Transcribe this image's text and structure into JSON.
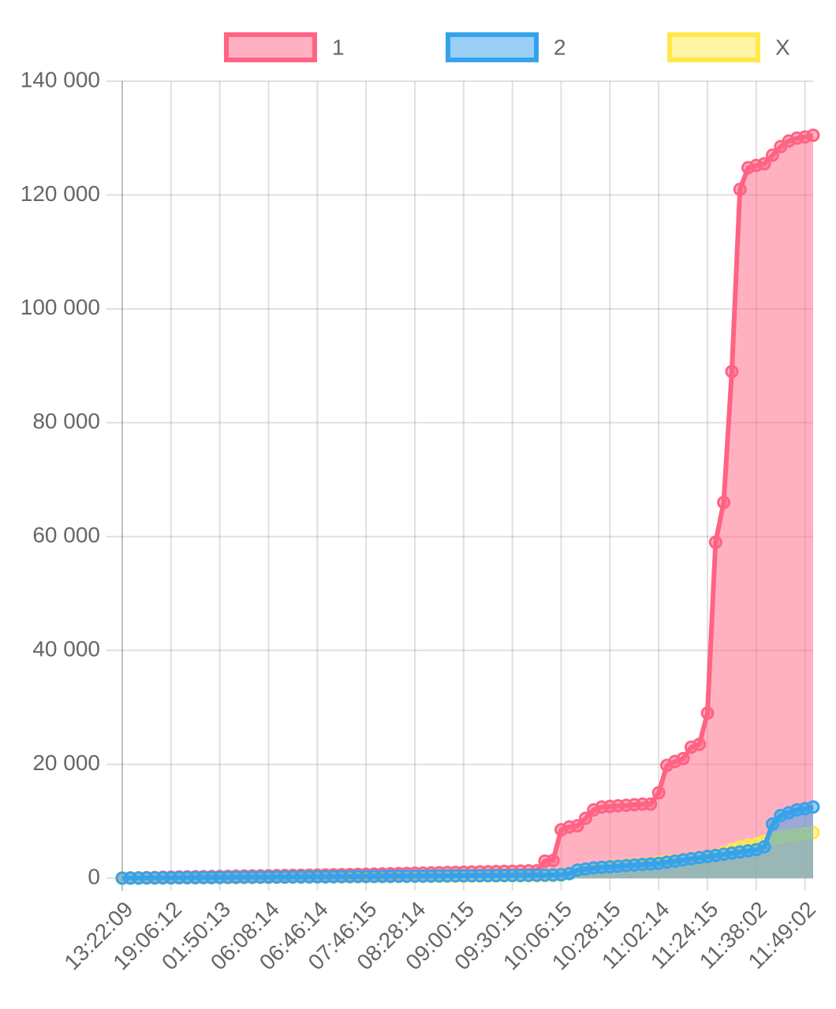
{
  "chart_data": {
    "type": "line",
    "categories": [
      "13:22:09",
      null,
      null,
      null,
      null,
      null,
      "19:06:12",
      null,
      null,
      null,
      null,
      null,
      "01:50:13",
      null,
      null,
      null,
      null,
      null,
      "06:08:14",
      null,
      null,
      null,
      null,
      null,
      "06:46:14",
      null,
      null,
      null,
      null,
      null,
      "07:46:15",
      null,
      null,
      null,
      null,
      null,
      "08:28:14",
      null,
      null,
      null,
      null,
      null,
      "09:00:15",
      null,
      null,
      null,
      null,
      null,
      "09:30:15",
      null,
      null,
      null,
      null,
      null,
      "10:06:15",
      null,
      null,
      null,
      null,
      null,
      "10:28:15",
      null,
      null,
      null,
      null,
      null,
      "11:02:14",
      null,
      null,
      null,
      null,
      null,
      "11:24:15",
      null,
      null,
      null,
      null,
      null,
      "11:38:02",
      null,
      null,
      null,
      null,
      null,
      "11:49:02",
      null
    ],
    "series": [
      {
        "name": "1",
        "color": "#ff6384",
        "values": [
          0,
          30,
          60,
          90,
          120,
          150,
          180,
          200,
          220,
          240,
          260,
          280,
          300,
          320,
          340,
          360,
          380,
          400,
          420,
          440,
          460,
          480,
          500,
          520,
          540,
          560,
          580,
          600,
          620,
          650,
          680,
          710,
          740,
          770,
          800,
          830,
          860,
          890,
          920,
          950,
          980,
          1010,
          1040,
          1070,
          1100,
          1130,
          1160,
          1190,
          1220,
          1250,
          1280,
          1300,
          3000,
          3100,
          8500,
          9000,
          9200,
          10500,
          12000,
          12500,
          12600,
          12700,
          12800,
          12900,
          13000,
          13000,
          15000,
          19800,
          20500,
          21000,
          23000,
          23500,
          29000,
          59000,
          66000,
          89000,
          121000,
          124800,
          125200,
          125500,
          127000,
          128500,
          129500,
          130000,
          130200,
          130500
        ]
      },
      {
        "name": "2",
        "color": "#36a2eb",
        "values": [
          0,
          10,
          20,
          30,
          40,
          50,
          60,
          70,
          80,
          90,
          100,
          110,
          120,
          130,
          140,
          150,
          160,
          170,
          180,
          190,
          200,
          210,
          220,
          230,
          240,
          250,
          260,
          270,
          280,
          290,
          300,
          310,
          320,
          330,
          340,
          350,
          360,
          370,
          380,
          390,
          400,
          410,
          420,
          430,
          440,
          450,
          460,
          470,
          480,
          490,
          500,
          520,
          540,
          560,
          600,
          800,
          1400,
          1600,
          1800,
          1900,
          2000,
          2100,
          2200,
          2300,
          2400,
          2500,
          2600,
          2800,
          3000,
          3200,
          3400,
          3600,
          3800,
          4000,
          4200,
          4400,
          4600,
          4800,
          5000,
          5500,
          9500,
          11000,
          11500,
          12000,
          12200,
          12500
        ]
      },
      {
        "name": "X",
        "color": "#ffe94a",
        "values": [
          0,
          8,
          16,
          24,
          32,
          40,
          48,
          56,
          64,
          72,
          80,
          88,
          96,
          104,
          112,
          120,
          128,
          136,
          144,
          152,
          160,
          168,
          176,
          184,
          192,
          200,
          208,
          216,
          224,
          232,
          240,
          248,
          256,
          264,
          272,
          280,
          288,
          296,
          304,
          312,
          320,
          328,
          336,
          344,
          352,
          360,
          368,
          376,
          384,
          392,
          400,
          420,
          440,
          460,
          500,
          800,
          1200,
          1500,
          1700,
          1900,
          2100,
          2200,
          2300,
          2400,
          2500,
          2600,
          2800,
          3000,
          3100,
          3200,
          3300,
          3500,
          3800,
          4100,
          4500,
          5000,
          5500,
          5800,
          6000,
          6500,
          7000,
          7200,
          7500,
          7700,
          7800,
          8000
        ]
      }
    ],
    "ylim": [
      0,
      140000
    ],
    "yticks": [
      {
        "value": 0,
        "label": "0"
      },
      {
        "value": 20000,
        "label": "20 000"
      },
      {
        "value": 40000,
        "label": "40 000"
      },
      {
        "value": 60000,
        "label": "60 000"
      },
      {
        "value": 80000,
        "label": "80 000"
      },
      {
        "value": 100000,
        "label": "100 000"
      },
      {
        "value": 120000,
        "label": "120 000"
      },
      {
        "value": 140000,
        "label": "140 000"
      }
    ],
    "grid": true,
    "legend": "top",
    "fill": true
  }
}
